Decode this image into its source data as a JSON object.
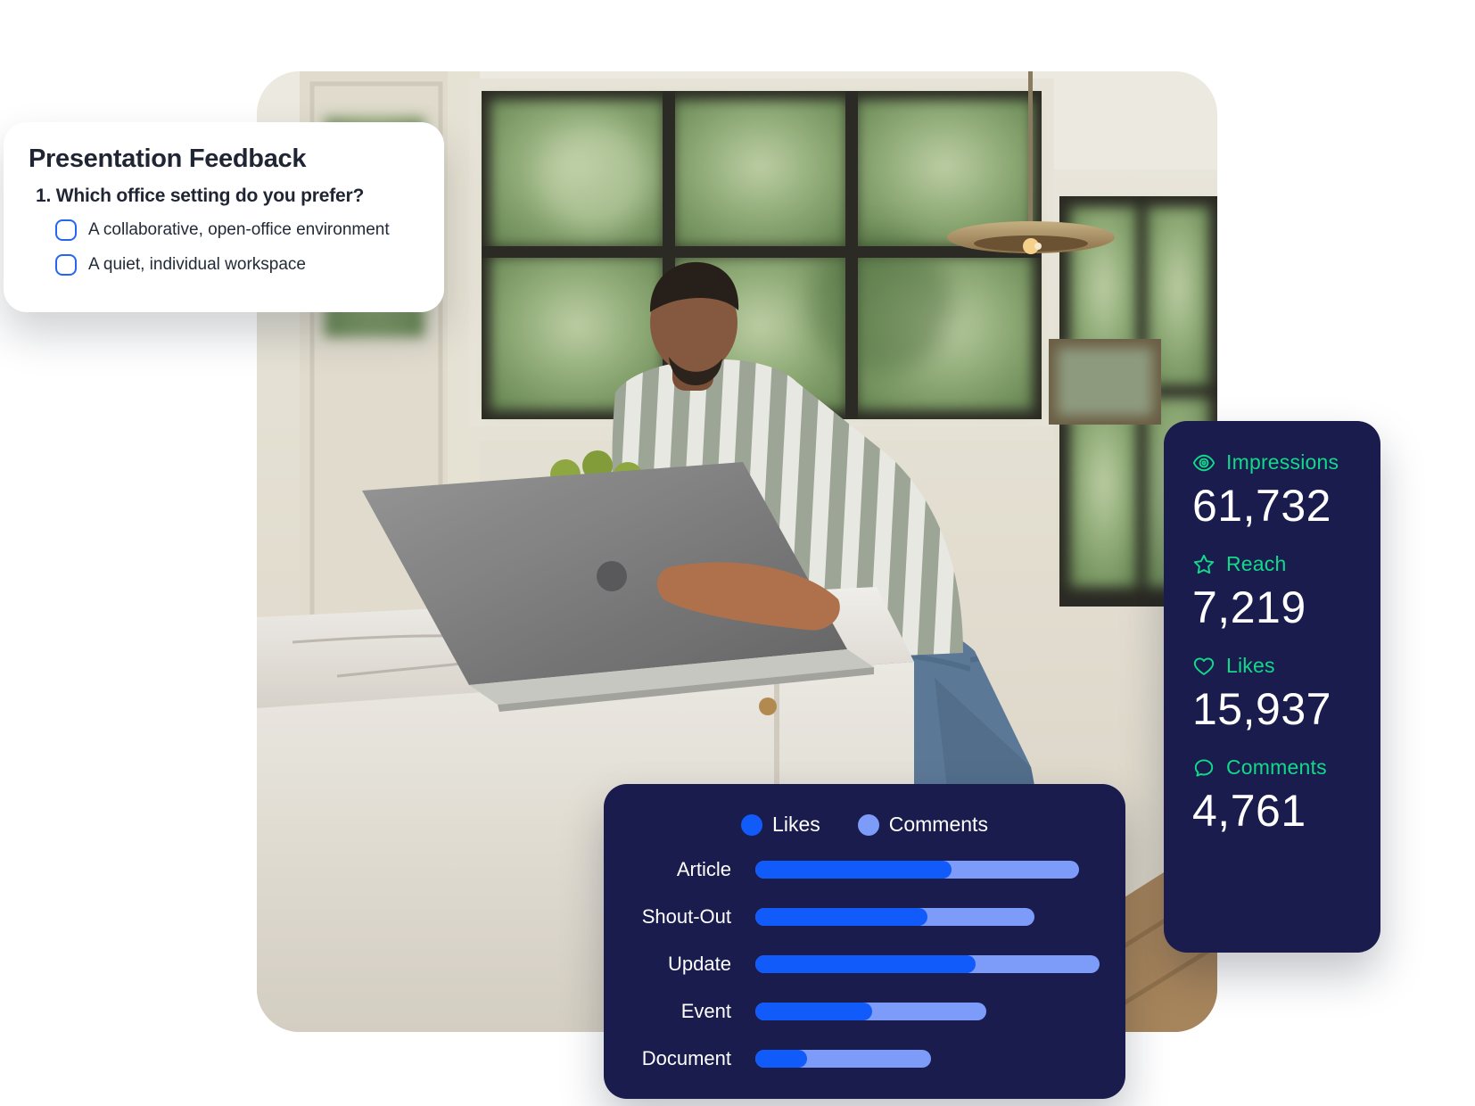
{
  "photo": {
    "description": "Man in a striped shirt leaning on a white kitchen island, working on a laptop, with large windows and greenery behind"
  },
  "feedback_card": {
    "title": "Presentation Feedback",
    "question": "1. Which office setting do you prefer?",
    "options": [
      {
        "label": "A collaborative, open-office environment",
        "checked": false
      },
      {
        "label": "A quiet, individual workspace",
        "checked": false
      }
    ]
  },
  "stats_card": {
    "items": [
      {
        "icon": "eye-icon",
        "label": "Impressions",
        "value": "61,732"
      },
      {
        "icon": "star-icon",
        "label": "Reach",
        "value": "7,219"
      },
      {
        "icon": "heart-icon",
        "label": "Likes",
        "value": "15,937"
      },
      {
        "icon": "chat-icon",
        "label": "Comments",
        "value": "4,761"
      }
    ]
  },
  "chart_data": {
    "type": "bar",
    "orientation": "horizontal",
    "stacked": true,
    "legend_position": "top",
    "grid": false,
    "categories": [
      "Article",
      "Shout-Out",
      "Update",
      "Event",
      "Document"
    ],
    "series": [
      {
        "name": "Likes",
        "color": "#125BFB",
        "values": [
          57,
          50,
          64,
          34,
          15
        ]
      },
      {
        "name": "Comments",
        "color": "#7D9CFA",
        "values": [
          37,
          31,
          36,
          33,
          36
        ]
      }
    ],
    "value_unit": "percent of max bar width",
    "xlim": [
      0,
      100
    ]
  },
  "colors": {
    "likes_blue": "#125BFB",
    "comments_blue": "#7D9CFA",
    "card_navy": "#191C4D",
    "accent_green": "#12D98A",
    "checkbox_blue": "#2566F1"
  }
}
